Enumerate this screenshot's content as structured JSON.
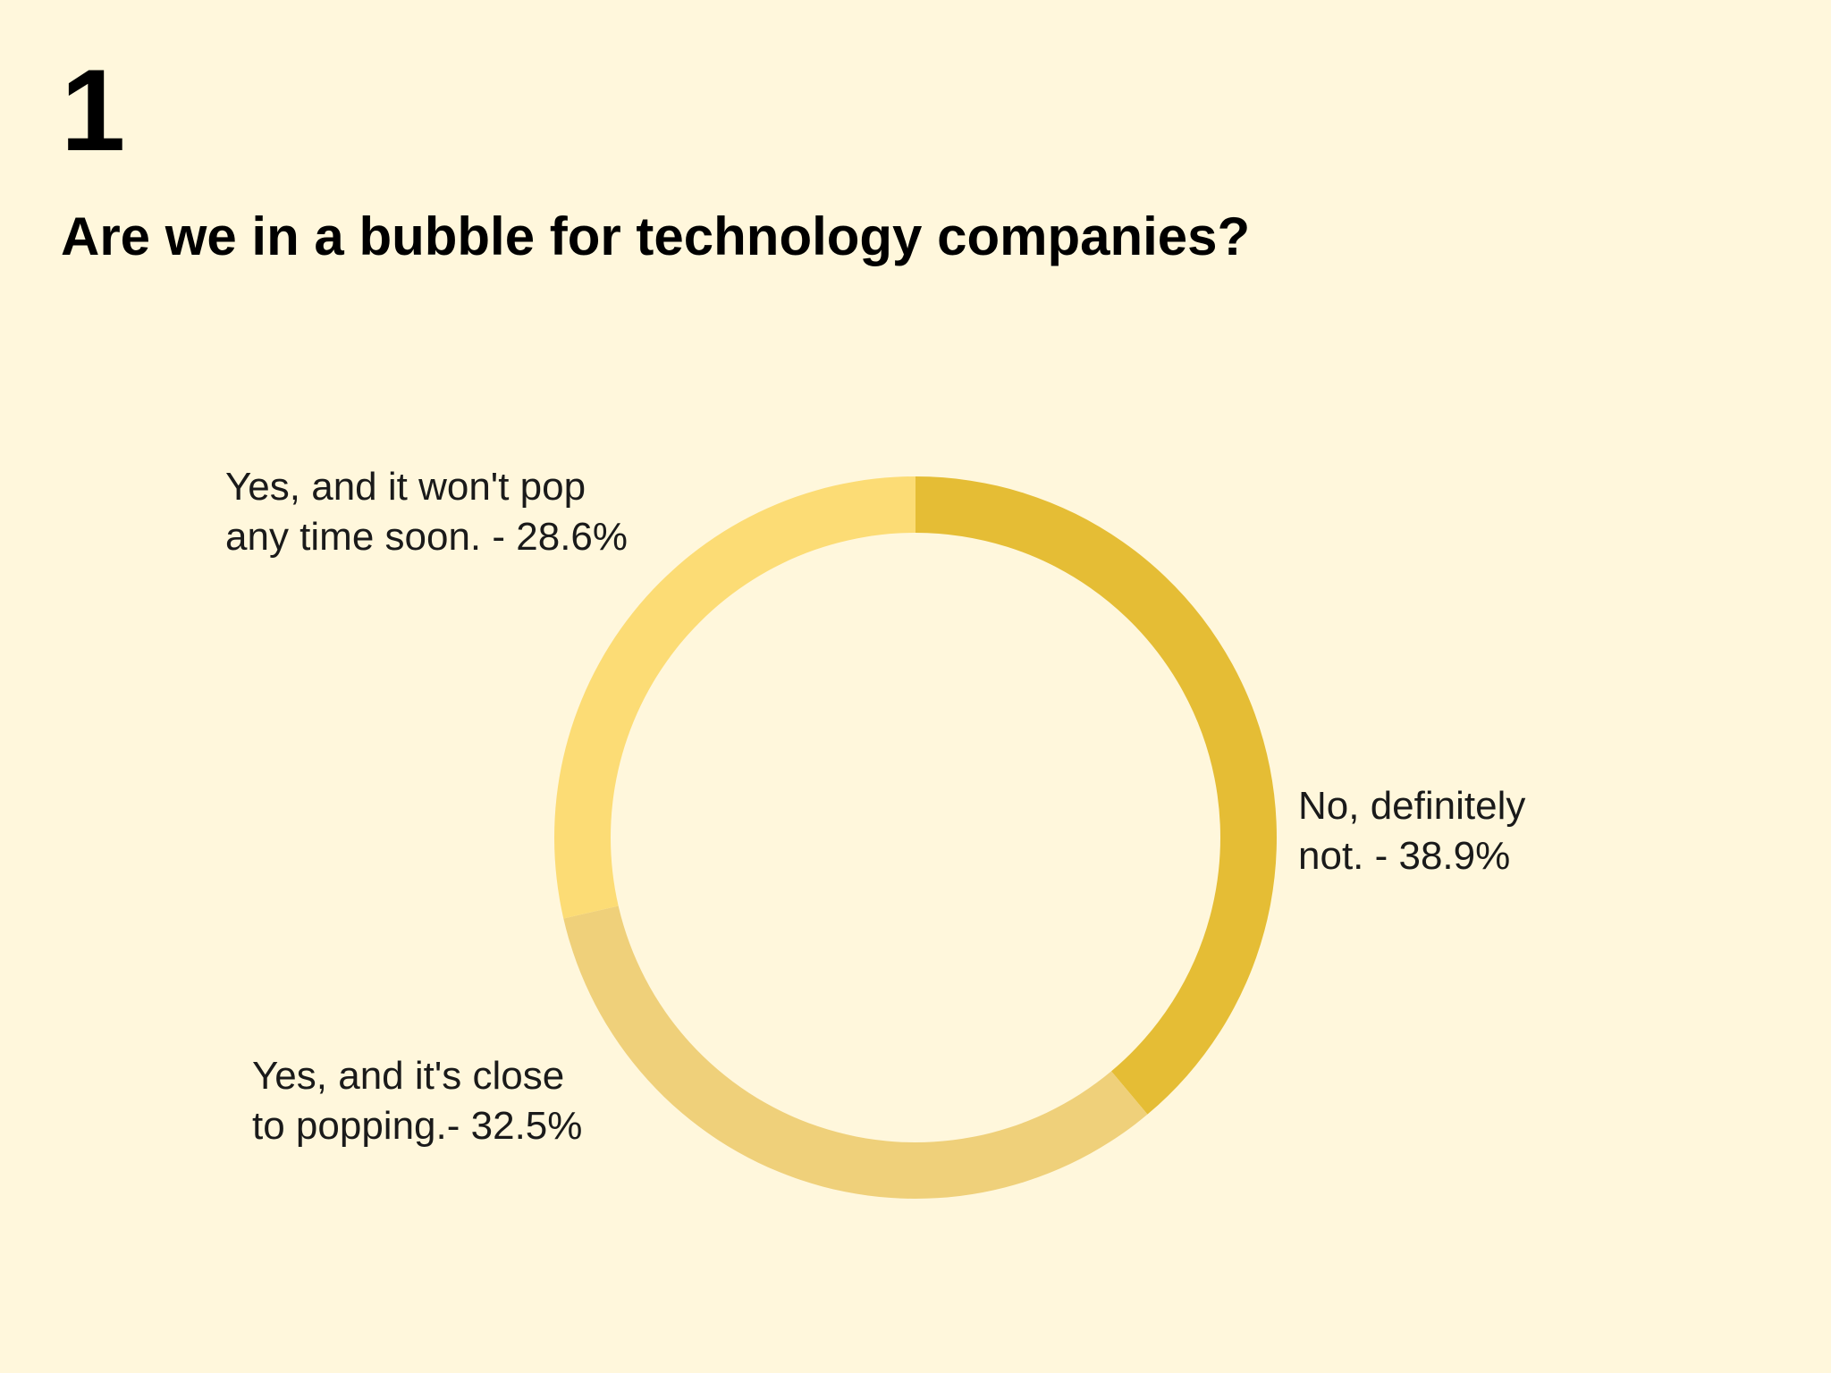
{
  "header": {
    "number": "1",
    "title": "Are we in a bubble for technology companies?"
  },
  "chart_data": {
    "type": "pie",
    "donut": true,
    "start": "top",
    "direction": "clockwise",
    "slices": [
      {
        "label": "No, definitely not.",
        "value": 38.9,
        "value_text": "38.9%",
        "color": "#e5bd35",
        "text_lines": [
          "No, definitely",
          "not. - 38.9%"
        ]
      },
      {
        "label": "Yes, and it's close to popping.",
        "value": 32.5,
        "value_text": "32.5%",
        "color": "#efd07a",
        "text_lines": [
          "Yes, and it's close",
          "to popping.- 32.5%"
        ]
      },
      {
        "label": "Yes, and it won't pop any time soon.",
        "value": 28.6,
        "value_text": "28.6%",
        "color": "#fcdc75",
        "text_lines": [
          "Yes, and it won't pop",
          "any time soon. - 28.6%"
        ]
      }
    ]
  }
}
